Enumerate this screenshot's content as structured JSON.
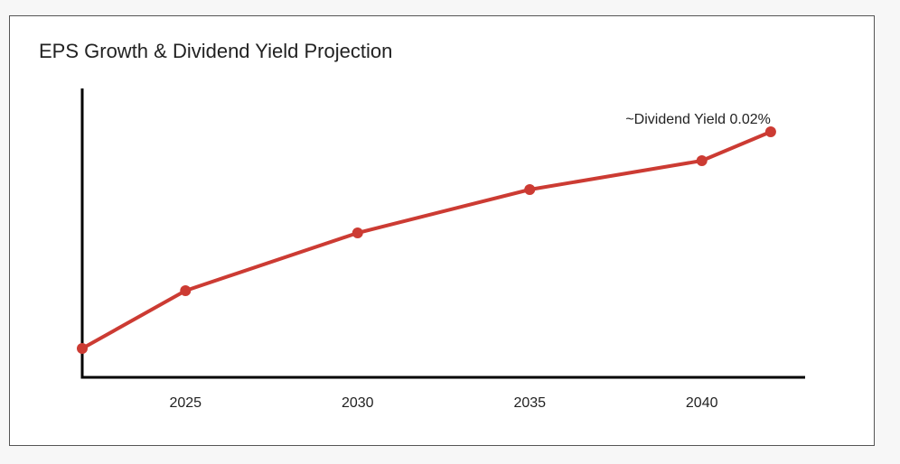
{
  "chart_data": {
    "type": "line",
    "title": "EPS Growth & Dividend Yield Projection",
    "xlabel": "",
    "ylabel": "",
    "x_ticks": [
      2025,
      2030,
      2035,
      2040
    ],
    "x": [
      2022,
      2025,
      2030,
      2035,
      2040,
      2042
    ],
    "values": [
      0.5,
      1.5,
      2.5,
      3.25,
      3.75,
      4.25
    ],
    "xlim": [
      2022,
      2043
    ],
    "ylim": [
      0,
      5
    ],
    "grid": false,
    "y_ticks_shown": false,
    "annotation": "~Dividend Yield 0.02%",
    "line_color": "#cc3b33",
    "axis_color": "#000000"
  }
}
